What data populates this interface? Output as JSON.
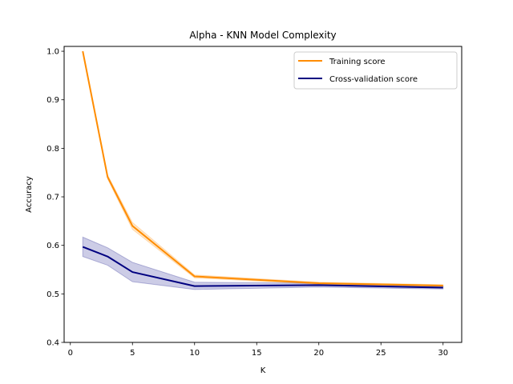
{
  "chart_data": {
    "type": "line",
    "title": "Alpha - KNN Model Complexity",
    "xlabel": "K",
    "ylabel": "Accuracy",
    "xlim": [
      -0.5,
      31.5
    ],
    "ylim": [
      0.4,
      1.01
    ],
    "xticks": [
      0,
      5,
      10,
      15,
      20,
      25,
      30
    ],
    "yticks": [
      0.4,
      0.5,
      0.6,
      0.7,
      0.8,
      0.9,
      1.0
    ],
    "x": [
      1,
      3,
      5,
      10,
      20,
      30
    ],
    "legend_position": "top-right",
    "grid": false,
    "series": [
      {
        "name": "Training score",
        "color": "#ff8c00",
        "values": [
          1.0,
          0.741,
          0.64,
          0.536,
          0.522,
          0.517
        ],
        "upper": [
          1.0,
          0.745,
          0.647,
          0.539,
          0.524,
          0.519
        ],
        "lower": [
          1.0,
          0.737,
          0.633,
          0.533,
          0.52,
          0.515
        ]
      },
      {
        "name": "Cross-validation score",
        "color": "#000080",
        "values": [
          0.597,
          0.577,
          0.545,
          0.516,
          0.518,
          0.513
        ],
        "upper": [
          0.617,
          0.595,
          0.565,
          0.524,
          0.522,
          0.516
        ],
        "lower": [
          0.577,
          0.559,
          0.525,
          0.509,
          0.514,
          0.51
        ]
      }
    ]
  }
}
